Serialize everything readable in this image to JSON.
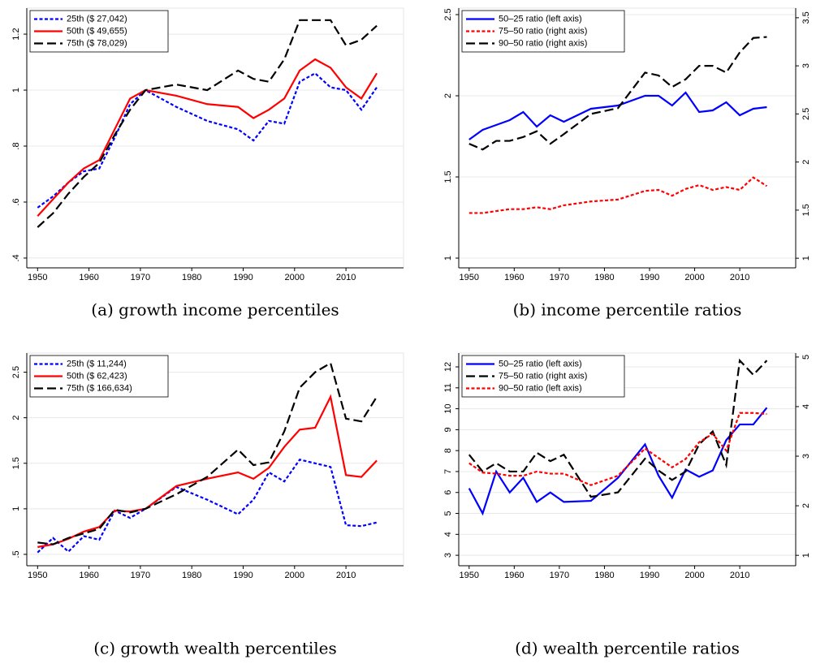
{
  "chart_data": [
    {
      "type": "line",
      "caption": "(a) growth income percentiles",
      "x": [
        1950,
        1953,
        1956,
        1959,
        1962,
        1965,
        1968,
        1971,
        1977,
        1983,
        1989,
        1992,
        1995,
        1998,
        2001,
        2004,
        2007,
        2010,
        2013,
        2016
      ],
      "xlim": [
        1947.9,
        2021.2
      ],
      "xticks": [
        1950,
        1960,
        1970,
        1980,
        1990,
        2000,
        2010
      ],
      "ylim": [
        0.365,
        1.293
      ],
      "yticks": [
        {
          "value": 0.4,
          "label": ".4"
        },
        {
          "value": 0.6,
          "label": ".6"
        },
        {
          "value": 0.8,
          "label": ".8"
        },
        1,
        1.2
      ],
      "grid": true,
      "legend": "upper left",
      "series": [
        {
          "name": "25th ($ 27,042)",
          "color": "#0000ff",
          "line_style": "dotted",
          "values": [
            0.58,
            0.62,
            0.67,
            0.71,
            0.72,
            0.83,
            0.95,
            1.0,
            0.94,
            0.89,
            0.86,
            0.82,
            0.89,
            0.88,
            1.03,
            1.06,
            1.01,
            1.0,
            0.93,
            1.01
          ]
        },
        {
          "name": "50th ($ 49,655)",
          "color": "#ff0000",
          "line_style": "solid",
          "values": [
            0.55,
            0.61,
            0.67,
            0.72,
            0.75,
            0.86,
            0.97,
            1.0,
            0.98,
            0.95,
            0.94,
            0.9,
            0.93,
            0.97,
            1.07,
            1.11,
            1.08,
            1.01,
            0.97,
            1.06
          ]
        },
        {
          "name": "75th ($ 78,029)",
          "color": "#000000",
          "line_style": "dashed",
          "values": [
            0.51,
            0.56,
            0.63,
            0.69,
            0.74,
            0.84,
            0.93,
            1.0,
            1.02,
            1.0,
            1.07,
            1.04,
            1.03,
            1.11,
            1.25,
            1.25,
            1.25,
            1.16,
            1.18,
            1.23
          ]
        }
      ]
    },
    {
      "type": "line",
      "caption": "(b) income percentile ratios",
      "x": [
        1950,
        1953,
        1956,
        1959,
        1962,
        1965,
        1968,
        1971,
        1977,
        1983,
        1989,
        1992,
        1995,
        1998,
        2001,
        2004,
        2007,
        2010,
        2013,
        2016
      ],
      "xlim": [
        1947.7,
        2022.4
      ],
      "xticks": [
        1950,
        1960,
        1970,
        1980,
        1990,
        2000,
        2010
      ],
      "ylim": [
        0.94,
        2.54
      ],
      "yticks": [
        1,
        1.5,
        2,
        2.5
      ],
      "y2lim": [
        0.9,
        3.6
      ],
      "y2ticks": [
        1,
        1.5,
        2,
        2.5,
        3,
        3.5
      ],
      "grid": true,
      "legend": "upper left",
      "series": [
        {
          "name": "50–25 ratio (left axis)",
          "color": "#0000ff",
          "line_style": "solid",
          "values": [
            1.73,
            1.79,
            1.82,
            1.85,
            1.9,
            1.81,
            1.88,
            1.84,
            1.92,
            1.94,
            2.0,
            2.0,
            1.94,
            2.02,
            1.9,
            1.91,
            1.96,
            1.88,
            1.92,
            1.93
          ]
        },
        {
          "name": "75–50 ratio (right axis)",
          "color": "#ff0000",
          "line_style": "dotted",
          "axis": "y2",
          "values": [
            1.47,
            1.47,
            1.49,
            1.51,
            1.51,
            1.53,
            1.51,
            1.55,
            1.59,
            1.61,
            1.7,
            1.71,
            1.65,
            1.72,
            1.76,
            1.71,
            1.74,
            1.71,
            1.84,
            1.75
          ]
        },
        {
          "name": "90–50 ratio (right axis)",
          "color": "#000000",
          "line_style": "dashed",
          "axis": "y2",
          "values": [
            2.19,
            2.13,
            2.22,
            2.22,
            2.26,
            2.32,
            2.19,
            2.29,
            2.5,
            2.56,
            2.93,
            2.9,
            2.78,
            2.86,
            3.0,
            3.0,
            2.93,
            3.14,
            3.29,
            3.3
          ]
        }
      ]
    },
    {
      "type": "line",
      "caption": "(c) growth wealth percentiles",
      "x": [
        1950,
        1953,
        1956,
        1959,
        1962,
        1965,
        1968,
        1971,
        1977,
        1983,
        1989,
        1992,
        1995,
        1998,
        2001,
        2004,
        2007,
        2010,
        2013,
        2016
      ],
      "xlim": [
        1947.9,
        2021.2
      ],
      "xticks": [
        1950,
        1960,
        1970,
        1980,
        1990,
        2000,
        2010
      ],
      "ylim": [
        0.375,
        2.71
      ],
      "yticks": [
        {
          "value": 0.5,
          "label": ".5"
        },
        1,
        1.5,
        2,
        2.5
      ],
      "grid": true,
      "legend": "upper left",
      "series": [
        {
          "name": "25th ($ 11,244)",
          "color": "#0000ff",
          "line_style": "dotted",
          "values": [
            0.52,
            0.68,
            0.53,
            0.7,
            0.66,
            0.98,
            0.9,
            1.0,
            1.24,
            1.1,
            0.94,
            1.1,
            1.4,
            1.3,
            1.54,
            1.5,
            1.46,
            0.82,
            0.81,
            0.85
          ]
        },
        {
          "name": "50th ($ 62,423)",
          "color": "#ff0000",
          "line_style": "solid",
          "values": [
            0.58,
            0.61,
            0.67,
            0.75,
            0.8,
            0.98,
            0.97,
            1.0,
            1.25,
            1.33,
            1.4,
            1.33,
            1.45,
            1.68,
            1.87,
            1.89,
            2.23,
            1.37,
            1.35,
            1.53
          ]
        },
        {
          "name": "75th ($ 166,634)",
          "color": "#000000",
          "line_style": "dashed",
          "values": [
            0.63,
            0.61,
            0.68,
            0.73,
            0.78,
            0.99,
            0.96,
            1.0,
            1.16,
            1.35,
            1.65,
            1.48,
            1.51,
            1.85,
            2.33,
            2.5,
            2.6,
            1.99,
            1.96,
            2.23
          ]
        }
      ]
    },
    {
      "type": "line",
      "caption": "(d) wealth percentile ratios",
      "x": [
        1950,
        1953,
        1956,
        1959,
        1962,
        1965,
        1968,
        1971,
        1977,
        1983,
        1989,
        1992,
        1995,
        1998,
        2001,
        2004,
        2007,
        2010,
        2013,
        2016
      ],
      "xlim": [
        1947.7,
        2022.4
      ],
      "xticks": [
        1950,
        1960,
        1970,
        1980,
        1990,
        2000,
        2010
      ],
      "ylim": [
        2.5,
        12.66
      ],
      "yticks": [
        3,
        4,
        5,
        6,
        7,
        8,
        9,
        10,
        11,
        12
      ],
      "y2lim": [
        0.79,
        5.08
      ],
      "y2ticks": [
        1,
        2,
        3,
        4,
        5
      ],
      "grid": true,
      "legend": "upper left",
      "series": [
        {
          "name": "50–25 ratio (left axis)",
          "color": "#0000ff",
          "line_style": "solid",
          "values": [
            6.2,
            5.0,
            7.0,
            6.0,
            6.7,
            5.55,
            6.0,
            5.55,
            5.6,
            6.7,
            8.3,
            6.8,
            5.75,
            7.1,
            6.75,
            7.05,
            8.5,
            9.25,
            9.25,
            10.05
          ]
        },
        {
          "name": "75–50 ratio (right axis)",
          "color": "#000000",
          "line_style": "dashed",
          "axis": "y2",
          "values": [
            3.03,
            2.69,
            2.86,
            2.69,
            2.69,
            3.07,
            2.9,
            3.03,
            2.18,
            2.27,
            2.95,
            2.71,
            2.52,
            2.69,
            3.24,
            3.5,
            2.82,
            4.93,
            4.64,
            4.93
          ]
        },
        {
          "name": "90–50 ratio (left axis)",
          "color": "#ff0000",
          "line_style": "dotted",
          "values": [
            7.4,
            6.95,
            6.9,
            6.8,
            6.8,
            7.0,
            6.9,
            6.9,
            6.35,
            6.8,
            8.1,
            7.65,
            7.2,
            7.6,
            8.4,
            8.8,
            8.0,
            9.8,
            9.8,
            9.75
          ]
        }
      ]
    }
  ]
}
